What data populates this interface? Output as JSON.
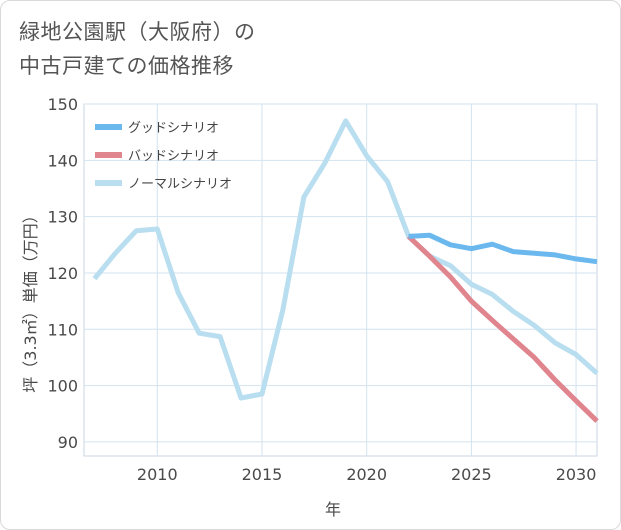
{
  "title_line1": "緑地公園駅（大阪府）の",
  "title_line2": "中古戸建ての価格推移",
  "chart_data": {
    "type": "line",
    "title": "緑地公園駅（大阪府）の中古戸建ての価格推移",
    "xlabel": "年",
    "ylabel": "坪（3.3㎡）単価（万円）",
    "xlim": [
      2006.5,
      2031
    ],
    "ylim": [
      87.5,
      150
    ],
    "xticks": [
      2010,
      2015,
      2020,
      2025,
      2030
    ],
    "yticks": [
      90,
      100,
      110,
      120,
      130,
      140,
      150
    ],
    "grid": true,
    "legend_position": "top-left",
    "series": [
      {
        "name": "グッドシナリオ",
        "color": "#6bb8ef",
        "x": [
          2022,
          2023,
          2024,
          2025,
          2026,
          2027,
          2028,
          2029,
          2030,
          2031
        ],
        "values": [
          126.5,
          126.7,
          125.0,
          124.3,
          125.1,
          123.8,
          123.5,
          123.2,
          122.5,
          122.0
        ]
      },
      {
        "name": "バッドシナリオ",
        "color": "#e0848e",
        "x": [
          2022,
          2023,
          2024,
          2025,
          2026,
          2027,
          2028,
          2029,
          2030,
          2031
        ],
        "values": [
          126.5,
          123.0,
          119.3,
          115.0,
          111.6,
          108.3,
          105.0,
          101.0,
          97.3,
          93.7
        ]
      },
      {
        "name": "ノーマルシナリオ",
        "color": "#b8def0",
        "x": [
          2007,
          2008,
          2009,
          2010,
          2011,
          2012,
          2013,
          2014,
          2015,
          2016,
          2017,
          2018,
          2019,
          2020,
          2021,
          2022,
          2023,
          2024,
          2025,
          2026,
          2027,
          2028,
          2029,
          2030,
          2031
        ],
        "values": [
          119.0,
          123.5,
          127.5,
          127.8,
          116.5,
          109.3,
          108.7,
          97.8,
          98.5,
          113.5,
          133.5,
          139.5,
          147.0,
          140.8,
          136.2,
          126.5,
          123.0,
          121.3,
          118.0,
          116.2,
          113.2,
          110.7,
          107.6,
          105.5,
          102.2
        ]
      }
    ]
  }
}
